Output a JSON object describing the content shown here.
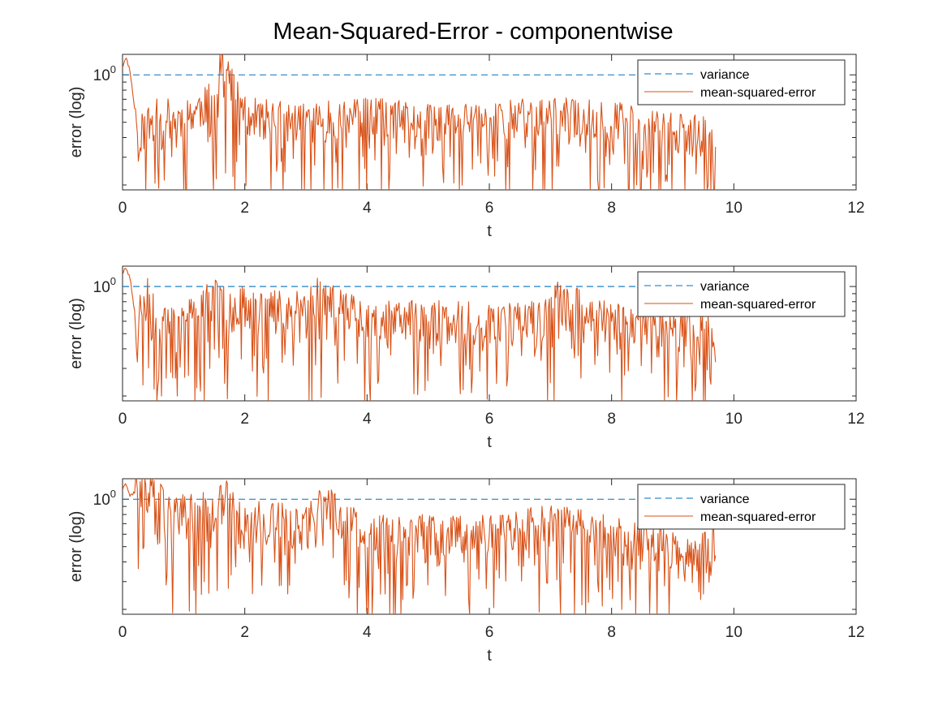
{
  "figure_title": "Mean-Squared-Error - componentwise",
  "chart_data": [
    {
      "type": "line",
      "title": "",
      "xlabel": "t",
      "ylabel": "error (log)",
      "xlim": [
        0,
        12
      ],
      "xticks": [
        0,
        2,
        4,
        6,
        8,
        10,
        12
      ],
      "ylim_log10": [
        -0.73,
        0.13
      ],
      "yscale": "log",
      "ytick_labels": [
        {
          "base": "10",
          "exp": "0"
        }
      ],
      "legend_position": "top-right",
      "colors": {
        "variance": "#0072BD",
        "mse": "#D95319"
      },
      "series": [
        {
          "name": "variance",
          "style": "dashed",
          "x": [
            0,
            9.7
          ],
          "y": [
            1,
            1
          ]
        },
        {
          "name": "mean-squared-error",
          "style": "solid",
          "x_range": [
            0,
            9.7
          ],
          "seed": 11,
          "anchors": [
            [
              0,
              1.12
            ],
            [
              0.05,
              1.3
            ],
            [
              0.12,
              1.08
            ],
            [
              0.25,
              0.42
            ],
            [
              0.6,
              0.55
            ],
            [
              1.0,
              0.52
            ],
            [
              1.5,
              0.7
            ],
            [
              1.6,
              1.25
            ],
            [
              2.0,
              0.55
            ],
            [
              3.0,
              0.5
            ],
            [
              4.0,
              0.55
            ],
            [
              5.0,
              0.5
            ],
            [
              6.0,
              0.52
            ],
            [
              7.0,
              0.55
            ],
            [
              8.0,
              0.52
            ],
            [
              9.0,
              0.45
            ],
            [
              9.7,
              0.4
            ]
          ],
          "dips": [
            [
              1.0,
              0.12
            ],
            [
              1.83,
              0.05
            ],
            [
              2.98,
              0.035
            ],
            [
              3.6,
              0.03
            ],
            [
              4.35,
              0.03
            ],
            [
              6.9,
              0.013
            ],
            [
              7.65,
              0.045
            ],
            [
              8.78,
              0.055
            ]
          ]
        }
      ]
    },
    {
      "type": "line",
      "title": "",
      "xlabel": "t",
      "ylabel": "error (log)",
      "xlim": [
        0,
        12
      ],
      "xticks": [
        0,
        2,
        4,
        6,
        8,
        10,
        12
      ],
      "ylim_log10": [
        -0.73,
        0.13
      ],
      "yscale": "log",
      "ytick_labels": [
        {
          "base": "10",
          "exp": "0"
        }
      ],
      "legend_position": "top-right",
      "colors": {
        "variance": "#0072BD",
        "mse": "#D95319"
      },
      "series": [
        {
          "name": "variance",
          "style": "dashed",
          "x": [
            0,
            9.7
          ],
          "y": [
            1,
            1
          ]
        },
        {
          "name": "mean-squared-error",
          "style": "solid",
          "x_range": [
            0,
            9.7
          ],
          "seed": 23,
          "anchors": [
            [
              0,
              1.2
            ],
            [
              0.04,
              1.32
            ],
            [
              0.12,
              1.15
            ],
            [
              0.22,
              0.6
            ],
            [
              0.4,
              0.9
            ],
            [
              0.6,
              0.55
            ],
            [
              1.0,
              0.6
            ],
            [
              1.5,
              0.85
            ],
            [
              2.0,
              0.75
            ],
            [
              3.0,
              0.72
            ],
            [
              3.2,
              0.9
            ],
            [
              4.0,
              0.62
            ],
            [
              5.0,
              0.62
            ],
            [
              6.0,
              0.6
            ],
            [
              7.0,
              0.65
            ],
            [
              7.1,
              0.85
            ],
            [
              8.0,
              0.6
            ],
            [
              9.0,
              0.55
            ],
            [
              9.7,
              0.5
            ]
          ],
          "dips": [
            [
              0.25,
              0.33
            ],
            [
              1.19,
              0.15
            ],
            [
              8.65,
              0.28
            ]
          ]
        }
      ]
    },
    {
      "type": "line",
      "title": "",
      "xlabel": "t",
      "ylabel": "error (log)",
      "xlim": [
        0,
        12
      ],
      "xticks": [
        0,
        2,
        4,
        6,
        8,
        10,
        12
      ],
      "ylim_log10": [
        -0.73,
        0.13
      ],
      "yscale": "log",
      "ytick_labels": [
        {
          "base": "10",
          "exp": "0"
        }
      ],
      "legend_position": "top-right",
      "colors": {
        "variance": "#0072BD",
        "mse": "#D95319"
      },
      "series": [
        {
          "name": "variance",
          "style": "dashed",
          "x": [
            0,
            9.7
          ],
          "y": [
            1,
            1
          ]
        },
        {
          "name": "mean-squared-error",
          "style": "solid",
          "x_range": [
            0,
            9.7
          ],
          "seed": 37,
          "anchors": [
            [
              0,
              1.15
            ],
            [
              0.05,
              1.3
            ],
            [
              0.12,
              1.05
            ],
            [
              0.3,
              1.2
            ],
            [
              0.5,
              1.1
            ],
            [
              0.8,
              0.8
            ],
            [
              1.5,
              0.85
            ],
            [
              1.6,
              1.1
            ],
            [
              2.0,
              0.75
            ],
            [
              3.0,
              0.7
            ],
            [
              3.3,
              0.95
            ],
            [
              4.0,
              0.6
            ],
            [
              5.0,
              0.62
            ],
            [
              6.0,
              0.62
            ],
            [
              7.0,
              0.7
            ],
            [
              8.0,
              0.65
            ],
            [
              9.0,
              0.5
            ],
            [
              9.7,
              0.55
            ]
          ],
          "dips": [
            [
              0.8,
              0.45
            ],
            [
              1.77,
              0.33
            ],
            [
              4.3,
              0.25
            ],
            [
              7.4,
              0.15
            ],
            [
              8.3,
              0.23
            ]
          ]
        }
      ]
    }
  ]
}
